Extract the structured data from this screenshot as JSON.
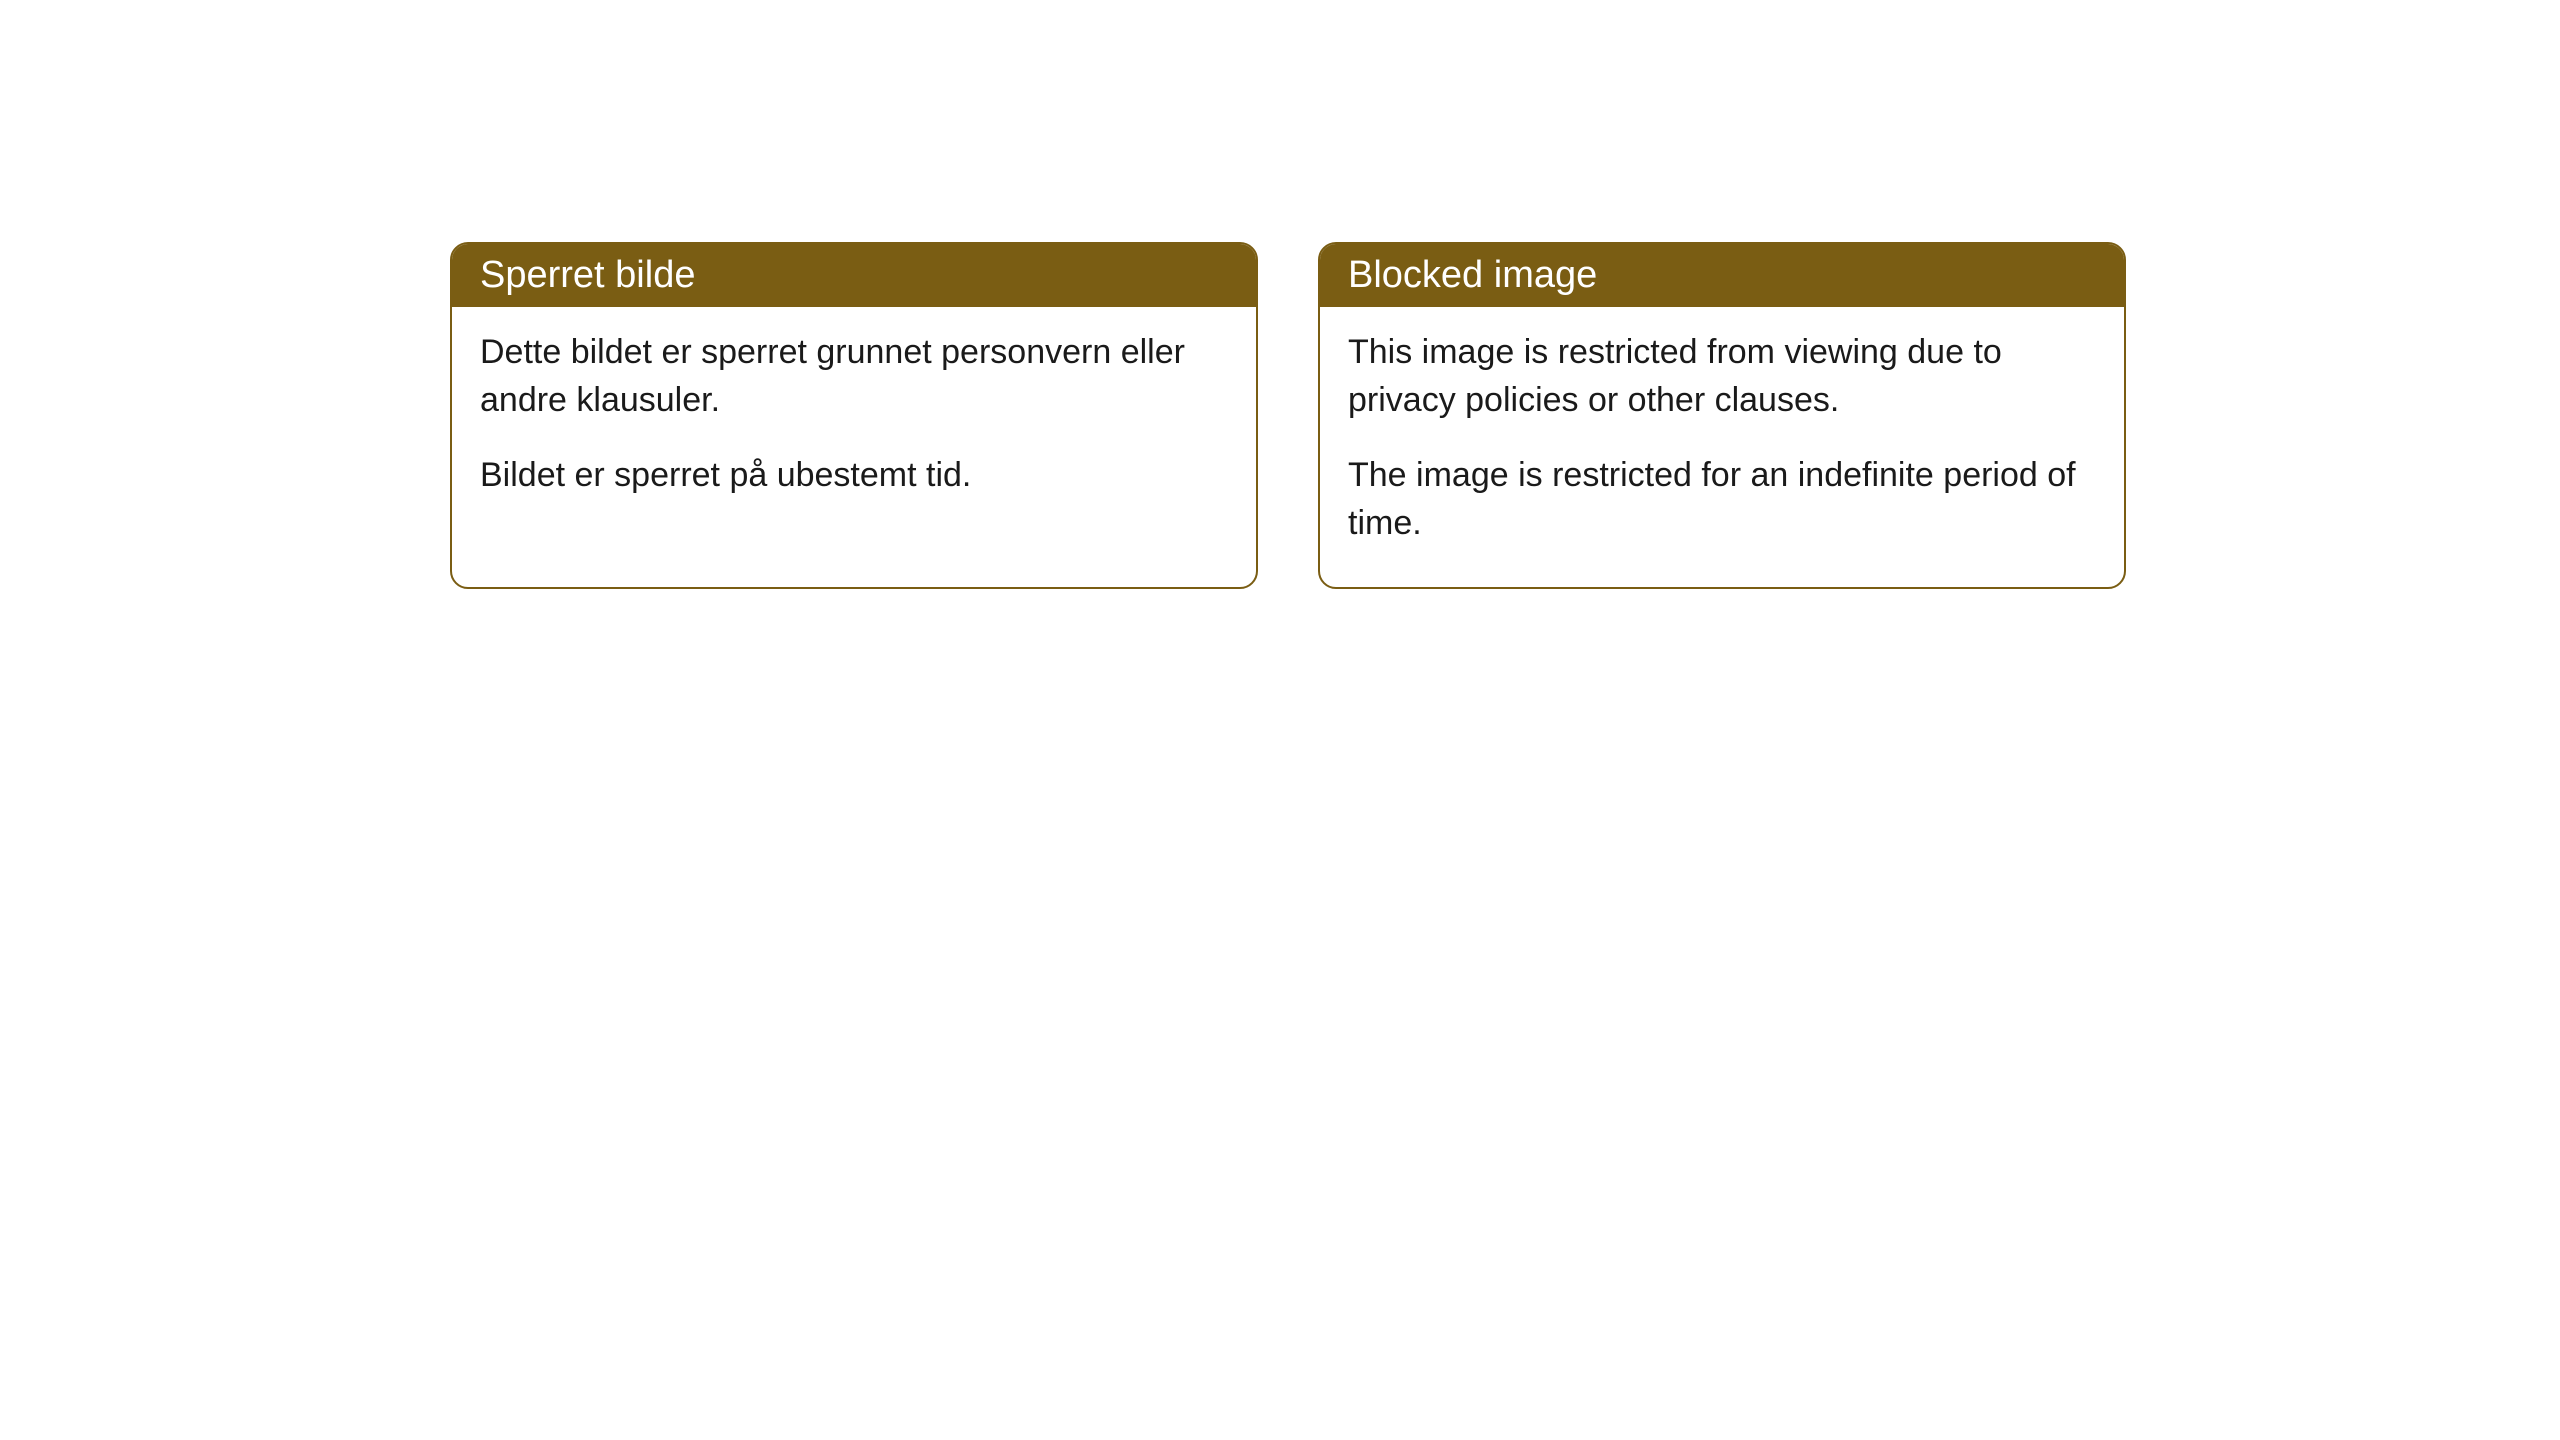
{
  "cards": [
    {
      "title": "Sperret bilde",
      "paragraph1": "Dette bildet er sperret grunnet personvern eller andre klausuler.",
      "paragraph2": "Bildet er sperret på ubestemt tid."
    },
    {
      "title": "Blocked image",
      "paragraph1": "This image is restricted from viewing due to privacy policies or other clauses.",
      "paragraph2": "The image is restricted for an indefinite period of time."
    }
  ],
  "styling": {
    "header_bg_color": "#7a5d13",
    "header_text_color": "#ffffff",
    "border_color": "#7a5d13",
    "body_bg_color": "#ffffff",
    "body_text_color": "#1a1a1a",
    "border_radius": 18,
    "header_fontsize": 38,
    "body_fontsize": 34
  }
}
